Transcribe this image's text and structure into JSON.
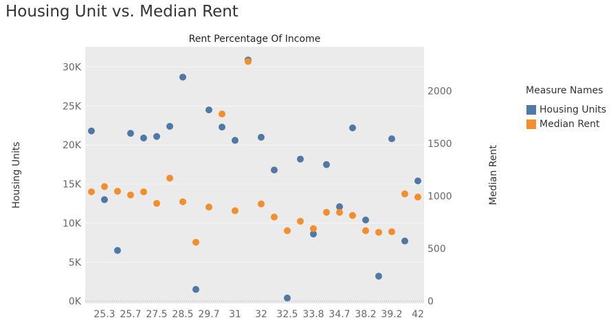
{
  "title": "Housing Unit vs. Median Rent",
  "chart_data": {
    "type": "scatter",
    "title": "Rent Percentage Of Income",
    "categories": [
      "",
      "25.3",
      "",
      "25.7",
      "",
      "27.5",
      "",
      "28.5",
      "",
      "29.7",
      "",
      "31",
      "",
      "32",
      "",
      "32.5",
      "",
      "33.8",
      "",
      "34.7",
      "",
      "38.2",
      "",
      "39.2",
      "",
      "42"
    ],
    "ylabel": "Housing Units",
    "ylabel_right": "Median Rent",
    "y_ticks": [
      "0K",
      "5K",
      "10K",
      "15K",
      "20K",
      "25K",
      "30K"
    ],
    "y_tick_values": [
      0,
      5000,
      10000,
      15000,
      20000,
      25000,
      30000
    ],
    "y2_ticks": [
      "0",
      "500",
      "1000",
      "1500",
      "2000"
    ],
    "y2_tick_values": [
      0,
      500,
      1000,
      1500,
      2000
    ],
    "ylim": [
      -300,
      32600
    ],
    "y2lim": [
      -22,
      2420
    ],
    "grid": true,
    "legend_position": "right",
    "series": [
      {
        "name": "Housing Units",
        "axis": "left",
        "color": "#4e79a7",
        "values": [
          21800,
          13000,
          6500,
          21500,
          20900,
          21100,
          22400,
          28700,
          1500,
          24500,
          22300,
          20600,
          30900,
          21000,
          16800,
          400,
          18200,
          8600,
          17500,
          12100,
          22200,
          10400,
          3200,
          20800,
          7700,
          15400
        ]
      },
      {
        "name": "Median Rent",
        "axis": "right",
        "color": "#f28e2b",
        "values": [
          1040,
          1090,
          1045,
          1010,
          1040,
          930,
          1170,
          945,
          560,
          895,
          1780,
          860,
          2280,
          925,
          800,
          670,
          760,
          690,
          845,
          845,
          815,
          670,
          655,
          660,
          1020,
          990
        ]
      }
    ]
  },
  "legend": {
    "title": "Measure Names",
    "items": [
      {
        "label": "Housing Units",
        "color": "#4e79a7"
      },
      {
        "label": "Median Rent",
        "color": "#f28e2b"
      }
    ]
  }
}
